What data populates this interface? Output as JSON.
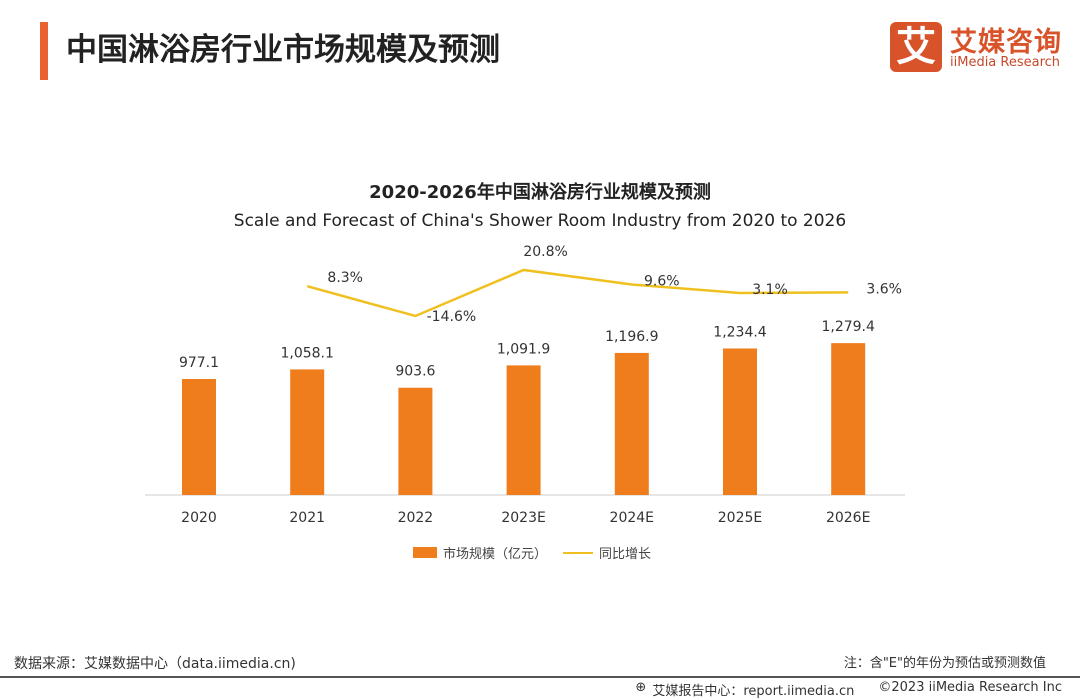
{
  "header": {
    "title": "中国淋浴房行业市场规模及预测"
  },
  "logo": {
    "mark": "艾",
    "name_cn": "艾媒咨询",
    "name_en": "iiMedia Research"
  },
  "chart_data": {
    "type": "bar+line",
    "title": "2020-2026年中国淋浴房行业规模及预测",
    "subtitle": "Scale and Forecast of China's Shower Room Industry from 2020 to 2026",
    "categories": [
      "2020",
      "2021",
      "2022",
      "2023E",
      "2024E",
      "2025E",
      "2026E"
    ],
    "series": [
      {
        "name": "市场规模（亿元）",
        "type": "bar",
        "color": "#ef7d1c",
        "values": [
          977.1,
          1058.1,
          903.6,
          1091.9,
          1196.9,
          1234.4,
          1279.4
        ],
        "labels": [
          "977.1",
          "1,058.1",
          "903.6",
          "1,091.9",
          "1,196.9",
          "1,234.4",
          "1,279.4"
        ]
      },
      {
        "name": "同比增长",
        "type": "line",
        "color": "#f0c020",
        "values": [
          null,
          8.3,
          -14.6,
          20.8,
          9.6,
          3.1,
          3.6
        ],
        "labels": [
          "",
          "8.3%",
          "-14.6%",
          "20.8%",
          "9.6%",
          "3.1%",
          "3.6%"
        ]
      }
    ],
    "legend": "bottom",
    "grid": false
  },
  "footer": {
    "source": "数据来源：艾媒数据中心（data.iimedia.cn)",
    "note": "注：含\"E\"的年份为预估或预测数值",
    "report": "艾媒报告中心：report.iimedia.cn",
    "copyright": "©2023  iiMedia Research  Inc"
  }
}
